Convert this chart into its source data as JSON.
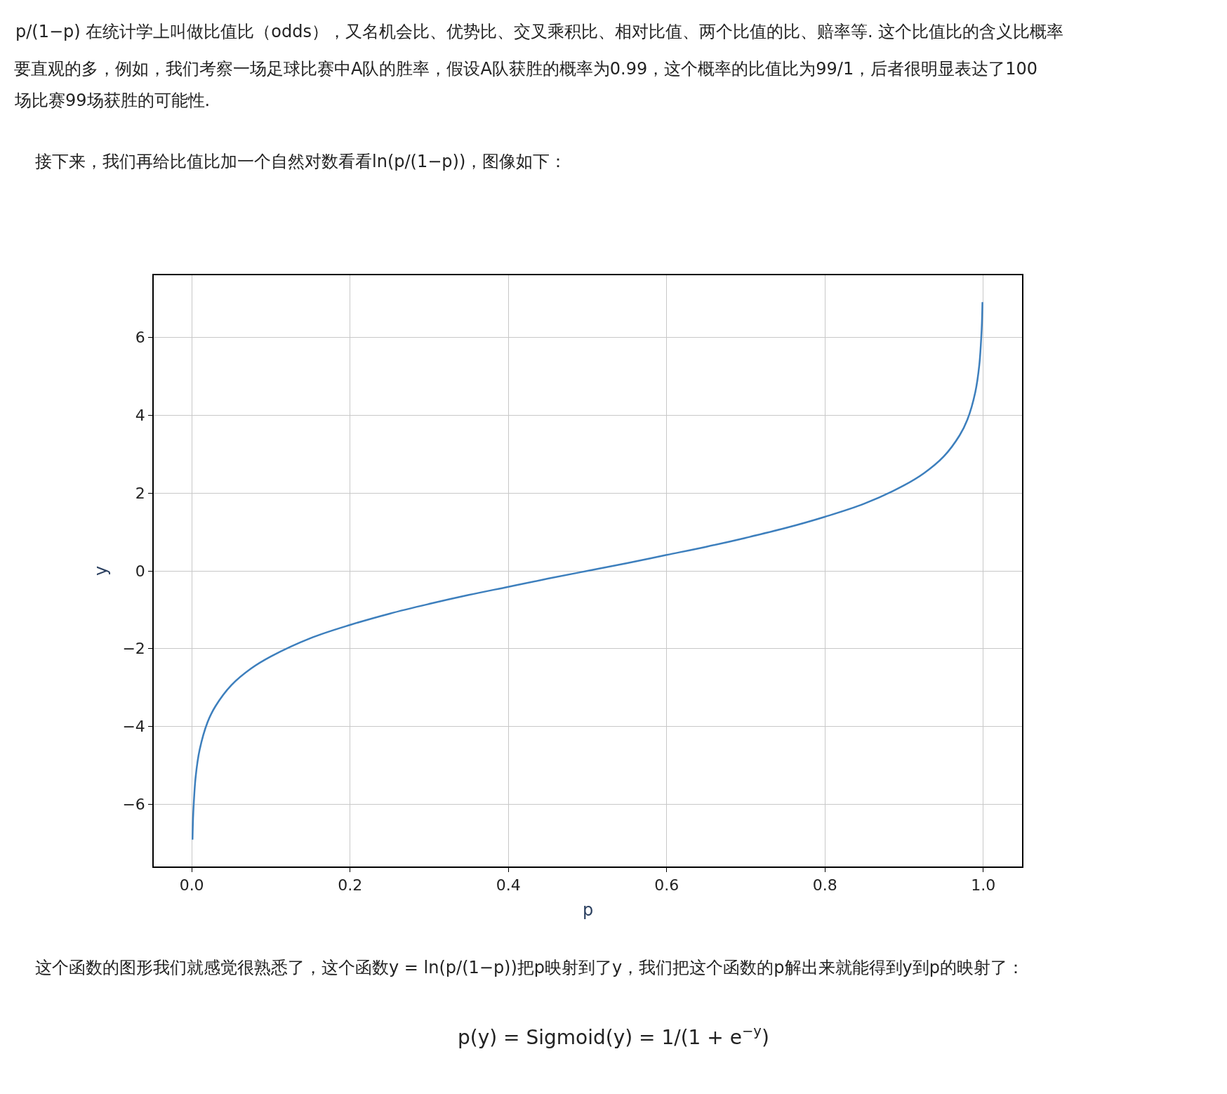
{
  "chart_data": {
    "type": "line",
    "xlabel": "p",
    "ylabel": "y",
    "annotations": [
      "p/(1−p) 在统计学上叫做比值比（odds），又名机会比、优势比、交叉乘积比、相对比值、两个比值的比、赔率等. 这个比值比的含义比概率",
      "要直观的多，例如，我们考察一场足球比赛中A队的胜率，假设A队获胜的概率为0.99，这个概率的比值比为99/1，后者很明显表达了100",
      "场比赛99场获胜的可能性.",
      "接下来，我们再给比值比加一个自然对数看看ln(p/(1−p))，图像如下：",
      "这个函数的图形我们就感觉很熟悉了，这个函数y = ln(p/(1−p))把p映射到了y，我们把这个函数的p解出来就能得到y到p的映射了：",
      "p(y) = Sigmoid(y) = 1/(1 + e$^{−y}$)"
    ],
    "x": [
      0.001,
      0.002,
      0.005,
      0.01,
      0.02,
      0.03,
      0.05,
      0.075,
      0.1,
      0.15,
      0.2,
      0.25,
      0.3,
      0.35,
      0.4,
      0.45,
      0.5,
      0.55,
      0.6,
      0.65,
      0.7,
      0.75,
      0.8,
      0.85,
      0.9,
      0.925,
      0.95,
      0.97,
      0.98,
      0.99,
      0.995,
      0.998,
      0.999
    ],
    "series": [
      {
        "color": "#3d7fbd",
        "values": [
          -6.91,
          -6.21,
          -5.29,
          -4.6,
          -3.89,
          -3.48,
          -2.94,
          -2.51,
          -2.2,
          -1.73,
          -1.39,
          -1.1,
          -0.85,
          -0.62,
          -0.41,
          -0.2,
          0,
          0.2,
          0.41,
          0.62,
          0.85,
          1.1,
          1.39,
          1.73,
          2.2,
          2.51,
          2.94,
          3.48,
          3.89,
          4.6,
          5.29,
          6.21,
          6.91
        ]
      }
    ],
    "xlim": [
      -0.048,
      1.049
    ],
    "ylim": [
      -7.6,
      7.6
    ],
    "xticks": [
      {
        "value": 0,
        "label": "0.0"
      },
      {
        "value": 0.2,
        "label": "0.2"
      },
      {
        "value": 0.4,
        "label": "0.4"
      },
      {
        "value": 0.6,
        "label": "0.6"
      },
      {
        "value": 0.8,
        "label": "0.8"
      },
      {
        "value": 1,
        "label": "1.0"
      }
    ],
    "yticks": [
      {
        "value": -6,
        "label": "−6"
      },
      {
        "value": -4,
        "label": "−4"
      },
      {
        "value": -2,
        "label": "−2"
      },
      0,
      2,
      4,
      6
    ],
    "grid": true,
    "legend": false,
    "marker": "none",
    "line_style": "solid"
  }
}
